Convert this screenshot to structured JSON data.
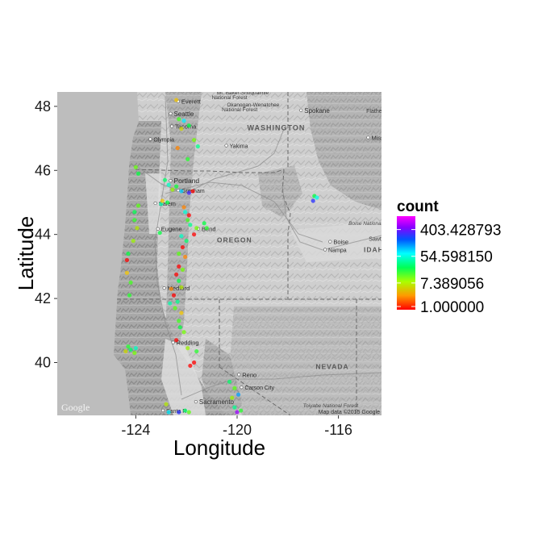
{
  "chart_data": {
    "type": "scatter",
    "xlabel": "Longitude",
    "ylabel": "Latitude",
    "xlim": [
      -127.1,
      -114.3
    ],
    "ylim": [
      38.35,
      48.45
    ],
    "x_ticks": [
      -124,
      -120,
      -116
    ],
    "y_ticks": [
      40,
      42,
      44,
      46,
      48
    ],
    "x_tick_labels": [
      "-124",
      "-120",
      "-116"
    ],
    "y_tick_labels": [
      "40",
      "42",
      "44",
      "46",
      "48"
    ],
    "legend": {
      "title": "count",
      "placement": "right",
      "scale": "log",
      "labels": [
        "403.428793",
        "54.598150",
        "7.389056",
        "1.000000"
      ],
      "label_values": [
        403.428793,
        54.59815,
        7.389056,
        1.0
      ],
      "max_value": 1100,
      "colors": [
        "#ff0000",
        "#ffbf00",
        "#80ff00",
        "#00ff40",
        "#00ffff",
        "#0040ff",
        "#8000ff",
        "#ff00ff"
      ]
    },
    "points": [
      {
        "lon": -122.4,
        "lat": 48.2,
        "count": 3
      },
      {
        "lon": -122.3,
        "lat": 47.6,
        "count": 12
      },
      {
        "lon": -122.1,
        "lat": 47.55,
        "count": 60
      },
      {
        "lon": -121.9,
        "lat": 47.4,
        "count": 20
      },
      {
        "lon": -122.2,
        "lat": 47.3,
        "count": 4
      },
      {
        "lon": -121.7,
        "lat": 46.95,
        "count": 8
      },
      {
        "lon": -121.55,
        "lat": 46.75,
        "count": 30
      },
      {
        "lon": -122.35,
        "lat": 46.7,
        "count": 2
      },
      {
        "lon": -121.95,
        "lat": 46.35,
        "count": 15
      },
      {
        "lon": -124.0,
        "lat": 46.1,
        "count": 9
      },
      {
        "lon": -123.9,
        "lat": 45.9,
        "count": 20
      },
      {
        "lon": -122.85,
        "lat": 45.7,
        "count": 25
      },
      {
        "lon": -122.7,
        "lat": 45.55,
        "count": 40
      },
      {
        "lon": -122.4,
        "lat": 45.5,
        "count": 18
      },
      {
        "lon": -122.2,
        "lat": 45.35,
        "count": 70
      },
      {
        "lon": -121.9,
        "lat": 45.3,
        "count": 250
      },
      {
        "lon": -121.75,
        "lat": 45.35,
        "count": 1
      },
      {
        "lon": -122.55,
        "lat": 45.4,
        "count": 6
      },
      {
        "lon": -122.75,
        "lat": 45.0,
        "count": 20
      },
      {
        "lon": -123.0,
        "lat": 44.95,
        "count": 35
      },
      {
        "lon": -122.95,
        "lat": 45.05,
        "count": 3
      },
      {
        "lon": -123.9,
        "lat": 44.9,
        "count": 10
      },
      {
        "lon": -124.05,
        "lat": 44.7,
        "count": 22
      },
      {
        "lon": -124.05,
        "lat": 44.45,
        "count": 14
      },
      {
        "lon": -123.95,
        "lat": 44.2,
        "count": 5
      },
      {
        "lon": -122.1,
        "lat": 44.85,
        "count": 2
      },
      {
        "lon": -122.05,
        "lat": 44.7,
        "count": 45
      },
      {
        "lon": -121.9,
        "lat": 44.6,
        "count": 1
      },
      {
        "lon": -121.95,
        "lat": 44.45,
        "count": 12
      },
      {
        "lon": -121.85,
        "lat": 44.3,
        "count": 30
      },
      {
        "lon": -121.6,
        "lat": 44.2,
        "count": 8
      },
      {
        "lon": -121.3,
        "lat": 44.35,
        "count": 20
      },
      {
        "lon": -121.2,
        "lat": 44.2,
        "count": 15
      },
      {
        "lon": -121.7,
        "lat": 44.0,
        "count": 1
      },
      {
        "lon": -122.2,
        "lat": 43.95,
        "count": 40
      },
      {
        "lon": -122.0,
        "lat": 43.8,
        "count": 25
      },
      {
        "lon": -122.15,
        "lat": 43.6,
        "count": 1
      },
      {
        "lon": -122.3,
        "lat": 43.4,
        "count": 10
      },
      {
        "lon": -122.05,
        "lat": 43.3,
        "count": 2
      },
      {
        "lon": -123.05,
        "lat": 44.05,
        "count": 20
      },
      {
        "lon": -124.1,
        "lat": 43.8,
        "count": 6
      },
      {
        "lon": -124.3,
        "lat": 43.4,
        "count": 20
      },
      {
        "lon": -124.35,
        "lat": 43.2,
        "count": 1
      },
      {
        "lon": -124.35,
        "lat": 42.8,
        "count": 3
      },
      {
        "lon": -124.2,
        "lat": 42.5,
        "count": 12
      },
      {
        "lon": -124.25,
        "lat": 42.1,
        "count": 15
      },
      {
        "lon": -122.3,
        "lat": 43.0,
        "count": 1
      },
      {
        "lon": -122.15,
        "lat": 42.9,
        "count": 8
      },
      {
        "lon": -122.4,
        "lat": 42.75,
        "count": 1
      },
      {
        "lon": -122.3,
        "lat": 42.55,
        "count": 20
      },
      {
        "lon": -122.2,
        "lat": 42.35,
        "count": 5
      },
      {
        "lon": -122.6,
        "lat": 42.3,
        "count": 2
      },
      {
        "lon": -122.5,
        "lat": 42.1,
        "count": 1
      },
      {
        "lon": -122.35,
        "lat": 41.9,
        "count": 30
      },
      {
        "lon": -122.45,
        "lat": 41.7,
        "count": 10
      },
      {
        "lon": -122.2,
        "lat": 41.55,
        "count": 3
      },
      {
        "lon": -122.3,
        "lat": 41.3,
        "count": 12
      },
      {
        "lon": -122.25,
        "lat": 41.1,
        "count": 20
      },
      {
        "lon": -122.1,
        "lat": 40.95,
        "count": 8
      },
      {
        "lon": -122.4,
        "lat": 40.7,
        "count": 1
      },
      {
        "lon": -121.95,
        "lat": 40.45,
        "count": 6
      },
      {
        "lon": -121.6,
        "lat": 40.35,
        "count": 15
      },
      {
        "lon": -121.7,
        "lat": 40.0,
        "count": 1
      },
      {
        "lon": -121.85,
        "lat": 39.9,
        "count": 1
      },
      {
        "lon": -122.65,
        "lat": 41.85,
        "count": 35
      },
      {
        "lon": -124.3,
        "lat": 40.5,
        "count": 15
      },
      {
        "lon": -124.2,
        "lat": 40.4,
        "count": 25
      },
      {
        "lon": -124.05,
        "lat": 40.3,
        "count": 8
      },
      {
        "lon": -124.0,
        "lat": 40.45,
        "count": 40
      },
      {
        "lon": -124.4,
        "lat": 40.35,
        "count": 4
      },
      {
        "lon": -116.95,
        "lat": 45.2,
        "count": 20
      },
      {
        "lon": -117.0,
        "lat": 45.05,
        "count": 200
      },
      {
        "lon": -116.85,
        "lat": 45.15,
        "count": 50
      },
      {
        "lon": -120.3,
        "lat": 39.4,
        "count": 25
      },
      {
        "lon": -120.1,
        "lat": 39.2,
        "count": 10
      },
      {
        "lon": -119.95,
        "lat": 39.0,
        "count": 90
      },
      {
        "lon": -120.2,
        "lat": 38.9,
        "count": 6
      },
      {
        "lon": -120.1,
        "lat": 38.6,
        "count": 30
      },
      {
        "lon": -120.0,
        "lat": 38.45,
        "count": 500
      },
      {
        "lon": -119.85,
        "lat": 38.5,
        "count": 15
      },
      {
        "lon": -122.3,
        "lat": 38.45,
        "count": 200
      },
      {
        "lon": -122.05,
        "lat": 38.5,
        "count": 25
      },
      {
        "lon": -121.9,
        "lat": 38.45,
        "count": 10
      },
      {
        "lon": -122.8,
        "lat": 38.7,
        "count": 5
      },
      {
        "lon": -122.7,
        "lat": 38.45,
        "count": 60
      }
    ]
  },
  "map": {
    "labels": [
      {
        "text": "Mt. Baker-Snoqualmie",
        "lon": -120.8,
        "lat": 48.38,
        "cls": "small",
        "size": 6.5
      },
      {
        "text": "National Forest",
        "lon": -121.0,
        "lat": 48.22,
        "cls": "small",
        "size": 6.5
      },
      {
        "text": "Everett",
        "lon": -122.2,
        "lat": 48.08,
        "cls": "",
        "size": 7.5
      },
      {
        "text": "Okanogan-Wenatchee",
        "lon": -120.4,
        "lat": 48.0,
        "cls": "small",
        "size": 6.5
      },
      {
        "text": "National Forest",
        "lon": -120.6,
        "lat": 47.84,
        "cls": "small",
        "size": 6.5
      },
      {
        "text": "Seattle",
        "lon": -122.5,
        "lat": 47.7,
        "cls": "",
        "size": 8
      },
      {
        "text": "Spokane",
        "lon": -117.35,
        "lat": 47.8,
        "cls": "",
        "size": 8
      },
      {
        "text": "Flathead National Fo",
        "lon": -114.9,
        "lat": 47.8,
        "cls": "small",
        "size": 7
      },
      {
        "text": "Tacoma",
        "lon": -122.45,
        "lat": 47.3,
        "cls": "",
        "size": 7.5
      },
      {
        "text": "WASHINGTON",
        "lon": -119.6,
        "lat": 47.25,
        "cls": "state",
        "size": 9
      },
      {
        "text": "Olympia",
        "lon": -123.3,
        "lat": 46.9,
        "cls": "",
        "size": 7
      },
      {
        "text": "Yakima",
        "lon": -120.3,
        "lat": 46.7,
        "cls": "",
        "size": 7
      },
      {
        "text": "Missoula",
        "lon": -114.7,
        "lat": 46.95,
        "cls": "",
        "size": 7.5
      },
      {
        "text": "Portland",
        "lon": -122.5,
        "lat": 45.6,
        "cls": "",
        "size": 8.5
      },
      {
        "text": "Gresham",
        "lon": -122.2,
        "lat": 45.3,
        "cls": "",
        "size": 7
      },
      {
        "text": "Salem",
        "lon": -123.1,
        "lat": 44.9,
        "cls": "",
        "size": 7.5
      },
      {
        "text": "Boise National Forest",
        "lon": -115.6,
        "lat": 44.3,
        "cls": "forest",
        "size": 6.5
      },
      {
        "text": "Eugene",
        "lon": -123.0,
        "lat": 44.1,
        "cls": "",
        "size": 7.5
      },
      {
        "text": "Bend",
        "lon": -121.4,
        "lat": 44.1,
        "cls": "",
        "size": 7.5
      },
      {
        "text": "OREGON",
        "lon": -120.8,
        "lat": 43.75,
        "cls": "state",
        "size": 8.5
      },
      {
        "text": "Boise",
        "lon": -116.2,
        "lat": 43.7,
        "cls": "",
        "size": 7.5
      },
      {
        "text": "Sawtooth Natio",
        "lon": -114.8,
        "lat": 43.8,
        "cls": "small",
        "size": 7
      },
      {
        "text": "Nampa",
        "lon": -116.4,
        "lat": 43.45,
        "cls": "",
        "size": 7
      },
      {
        "text": "IDAHO",
        "lon": -115.0,
        "lat": 43.45,
        "cls": "state",
        "size": 8.5
      },
      {
        "text": "Medford",
        "lon": -122.75,
        "lat": 42.25,
        "cls": "",
        "size": 7.5
      },
      {
        "text": "Redding",
        "lon": -122.4,
        "lat": 40.55,
        "cls": "",
        "size": 7.5
      },
      {
        "text": "NEVADA",
        "lon": -116.9,
        "lat": 39.8,
        "cls": "state",
        "size": 8.5
      },
      {
        "text": "Reno",
        "lon": -119.8,
        "lat": 39.55,
        "cls": "",
        "size": 7.5
      },
      {
        "text": "Carson City",
        "lon": -119.7,
        "lat": 39.15,
        "cls": "",
        "size": 7
      },
      {
        "text": "Toiyabe National Forest",
        "lon": -117.4,
        "lat": 38.6,
        "cls": "forest",
        "size": 6.5
      },
      {
        "text": "Sacramento",
        "lon": -121.5,
        "lat": 38.7,
        "cls": "",
        "size": 8
      },
      {
        "text": "Santa R",
        "lon": -122.8,
        "lat": 38.43,
        "cls": "",
        "size": 7
      }
    ],
    "attribution": "Map data ©2015 Google",
    "logo": "Google"
  }
}
